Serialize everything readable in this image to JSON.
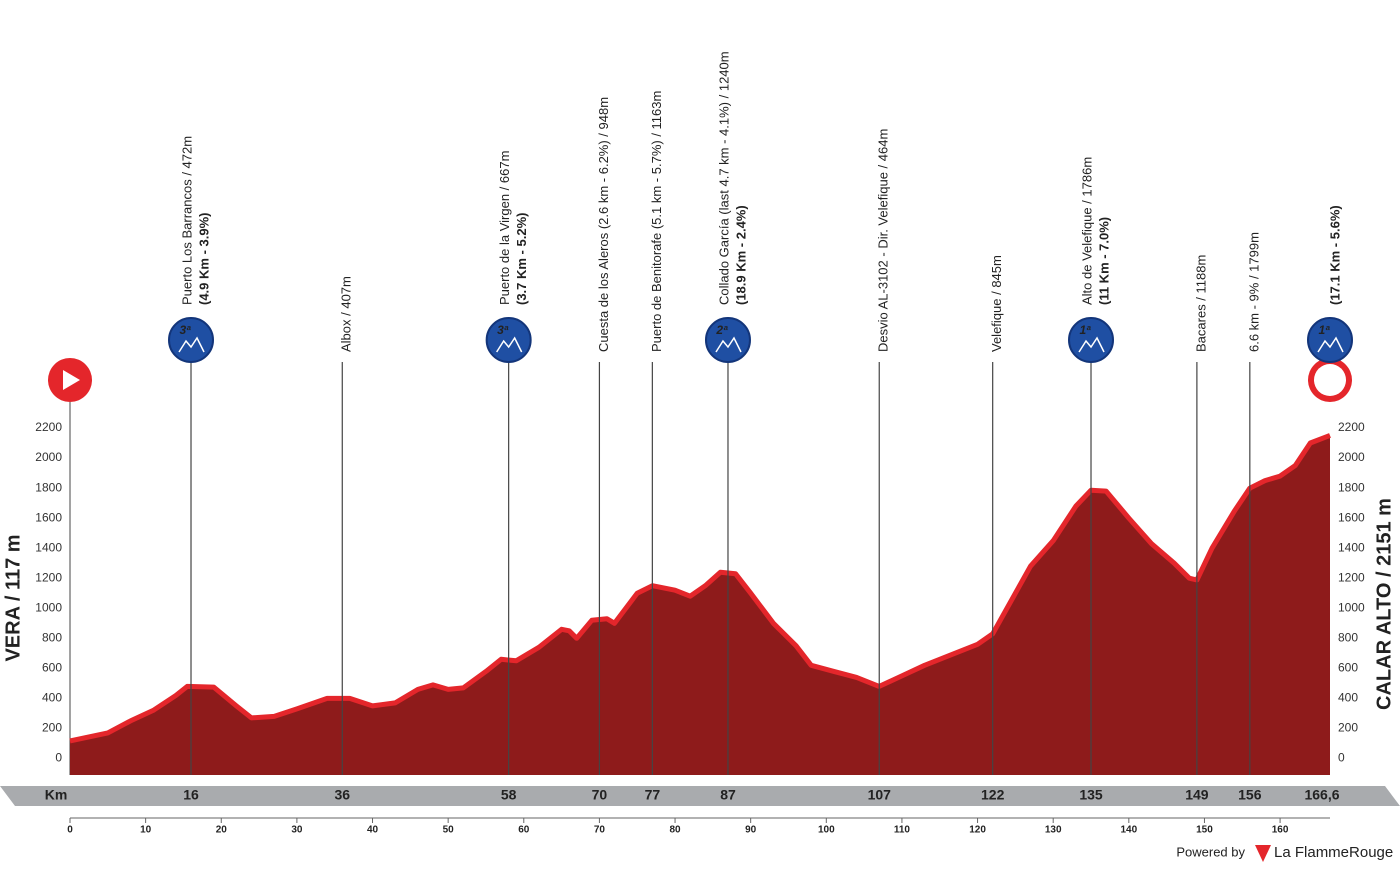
{
  "chart_data": {
    "type": "area",
    "start_label": "VERA / 117 m",
    "finish_label": "CALAR ALTO / 2151 m",
    "x": [
      0,
      5,
      8,
      11,
      14,
      15.5,
      19,
      22,
      24,
      27,
      30,
      34,
      37,
      40,
      43,
      46,
      48,
      50,
      52,
      55,
      57,
      59,
      62,
      65,
      66,
      67,
      69,
      71,
      72,
      75,
      77,
      80,
      82,
      84,
      86,
      88,
      90,
      93,
      96,
      98,
      101,
      104,
      107,
      110,
      113,
      116,
      120,
      122,
      125,
      127,
      130,
      133,
      135,
      137,
      140,
      143,
      146,
      148,
      149,
      151,
      154,
      156,
      158,
      160,
      162,
      164,
      166.6
    ],
    "values": [
      117,
      170,
      250,
      320,
      420,
      480,
      475,
      350,
      270,
      280,
      330,
      400,
      400,
      350,
      370,
      460,
      490,
      460,
      470,
      580,
      660,
      650,
      740,
      860,
      850,
      800,
      920,
      930,
      900,
      1100,
      1150,
      1120,
      1080,
      1150,
      1240,
      1230,
      1100,
      900,
      750,
      620,
      580,
      540,
      480,
      550,
      620,
      680,
      760,
      830,
      1100,
      1280,
      1450,
      1680,
      1786,
      1780,
      1600,
      1430,
      1300,
      1200,
      1188,
      1400,
      1650,
      1799,
      1850,
      1880,
      1950,
      2100,
      2151
    ],
    "fill_color": "#8e1b1b",
    "edge_color": "#e4262b",
    "xlim": [
      0,
      166.6
    ],
    "ylim": [
      -110,
      2200
    ],
    "xticks": [
      0,
      10,
      20,
      30,
      40,
      50,
      60,
      70,
      80,
      90,
      100,
      110,
      120,
      130,
      140,
      150,
      160
    ],
    "yticks": [
      0,
      200,
      400,
      600,
      800,
      1000,
      1200,
      1400,
      1600,
      1800,
      2000,
      2200
    ],
    "km_axis_label": "Km",
    "markers": [
      {
        "km": 16,
        "label": "Puerto Los Barrancos / 472m",
        "detail": "(4.9 Km - 3.9%)",
        "category": "3ª"
      },
      {
        "km": 36,
        "label": "Albox / 407m"
      },
      {
        "km": 58,
        "label": "Puerto de la Virgen / 667m",
        "detail": "(3.7 Km - 5.2%)",
        "category": "3ª"
      },
      {
        "km": 70,
        "label": "Cuesta de los Aleros (2.6 km - 6.2%) / 948m"
      },
      {
        "km": 77,
        "label": "Puerto de Benitorafe (5.1 km - 5.7%) / 1163m"
      },
      {
        "km": 87,
        "label": "Collado García (last 4.7 km - 4.1%) / 1240m",
        "detail": "(18.9 Km - 2.4%)",
        "category": "2ª"
      },
      {
        "km": 107,
        "label": "Desvio AL-3102 - Dir. Velefique / 464m"
      },
      {
        "km": 122,
        "label": "Velefique / 845m"
      },
      {
        "km": 135,
        "label": "Alto de Velefique / 1786m",
        "detail": "(11 Km - 7.0%)",
        "category": "1ª"
      },
      {
        "km": 149,
        "label": "Bacares / 1188m"
      },
      {
        "km": 156,
        "label": "6.6 km - 9% / 1799m"
      },
      {
        "km": {
          "value": 166.6,
          "label": "166,6"
        },
        "detail": "(17.1 Km - 5.6%)",
        "category": "1ª"
      }
    ],
    "footer": {
      "powered": "Powered by",
      "brand": "La FlammeRouge"
    }
  }
}
